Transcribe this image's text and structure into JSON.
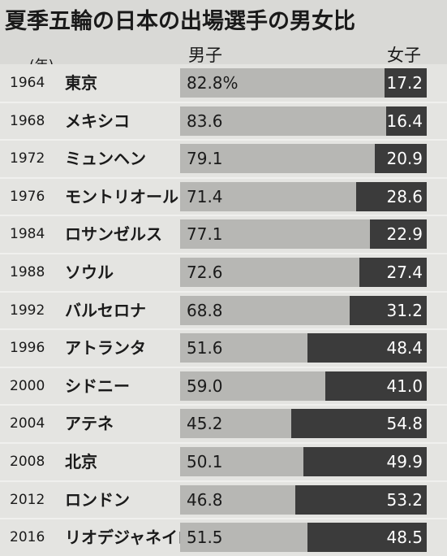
{
  "title": "夏季五輪の日本の出場選手の男女比",
  "headers": {
    "year": "(年)",
    "male": "男子",
    "female": "女子"
  },
  "colors": {
    "background": "#d9d9d6",
    "male_bar": "#b7b7b4",
    "female_bar": "#3b3b3b"
  },
  "chart_data": {
    "type": "bar",
    "stacked": true,
    "orientation": "horizontal",
    "title": "夏季五輪の日本の出場選手の男女比",
    "xlim": [
      0,
      100
    ],
    "grid": false,
    "categories": [
      {
        "year": "1964",
        "city": "東京"
      },
      {
        "year": "1968",
        "city": "メキシコ"
      },
      {
        "year": "1972",
        "city": "ミュンヘン"
      },
      {
        "year": "1976",
        "city": "モントリオール"
      },
      {
        "year": "1984",
        "city": "ロサンゼルス"
      },
      {
        "year": "1988",
        "city": "ソウル"
      },
      {
        "year": "1992",
        "city": "バルセロナ"
      },
      {
        "year": "1996",
        "city": "アトランタ"
      },
      {
        "year": "2000",
        "city": "シドニー"
      },
      {
        "year": "2004",
        "city": "アテネ"
      },
      {
        "year": "2008",
        "city": "北京"
      },
      {
        "year": "2012",
        "city": "ロンドン"
      },
      {
        "year": "2016",
        "city": "リオデジャネイロ"
      }
    ],
    "series": [
      {
        "name": "男子",
        "values": [
          82.8,
          83.6,
          79.1,
          71.4,
          77.1,
          72.6,
          68.8,
          51.6,
          59.0,
          45.2,
          50.1,
          46.8,
          51.5
        ],
        "labels": [
          "82.8%",
          "83.6",
          "79.1",
          "71.4",
          "77.1",
          "72.6",
          "68.8",
          "51.6",
          "59.0",
          "45.2",
          "50.1",
          "46.8",
          "51.5"
        ]
      },
      {
        "name": "女子",
        "values": [
          17.2,
          16.4,
          20.9,
          28.6,
          22.9,
          27.4,
          31.2,
          48.4,
          41.0,
          54.8,
          49.9,
          53.2,
          48.5
        ],
        "labels": [
          "17.2",
          "16.4",
          "20.9",
          "28.6",
          "22.9",
          "27.4",
          "31.2",
          "48.4",
          "41.0",
          "54.8",
          "49.9",
          "53.2",
          "48.5"
        ]
      }
    ]
  }
}
